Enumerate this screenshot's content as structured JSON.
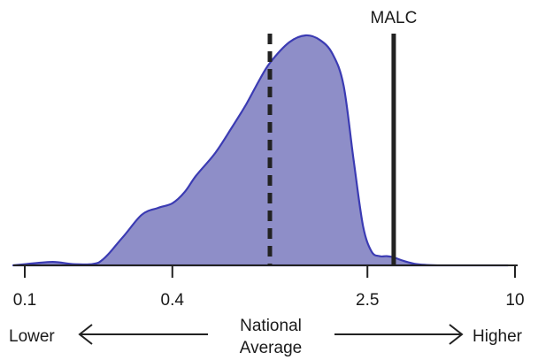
{
  "chart_data": {
    "type": "area",
    "title": "",
    "xlabel": "National Average",
    "xlabel_lines": [
      "National",
      "Average"
    ],
    "ylabel": "",
    "x_scale": "log",
    "x_ticks": [
      0.1,
      0.4,
      2.5,
      10
    ],
    "x_tick_labels": [
      "0.1",
      "0.4",
      "2.5",
      "10"
    ],
    "xlim": [
      0.1,
      10
    ],
    "ylim": [
      0,
      1
    ],
    "grid": false,
    "colors": {
      "fill": "#8e8ec8",
      "stroke": "#3b3bb3",
      "axis": "#222222",
      "marker": "#222222"
    },
    "series": [
      {
        "x": [
          0.1,
          0.13,
          0.16,
          0.2,
          0.25,
          0.3,
          0.35,
          0.4,
          0.45,
          0.5,
          0.6,
          0.7,
          0.8,
          0.9,
          1.0,
          1.2,
          1.4,
          1.6,
          1.8,
          2.0,
          2.2,
          2.4,
          2.6,
          2.8,
          3.0,
          3.2,
          3.5,
          4.0,
          5.0
        ],
        "y": [
          0.005,
          0.015,
          0.005,
          0.012,
          0.12,
          0.22,
          0.25,
          0.27,
          0.32,
          0.39,
          0.49,
          0.6,
          0.7,
          0.8,
          0.88,
          0.97,
          1.0,
          0.98,
          0.92,
          0.78,
          0.45,
          0.17,
          0.06,
          0.04,
          0.04,
          0.035,
          0.02,
          0.005,
          0.0
        ]
      }
    ],
    "reference_lines": [
      {
        "name": "National Average",
        "x": 1.0,
        "style": "dashed"
      },
      {
        "name": "MALC",
        "x": 3.2,
        "style": "solid",
        "label": "MALC"
      }
    ],
    "annotations": [
      {
        "text": "Lower",
        "direction": "left"
      },
      {
        "text": "Higher",
        "direction": "right"
      }
    ]
  }
}
